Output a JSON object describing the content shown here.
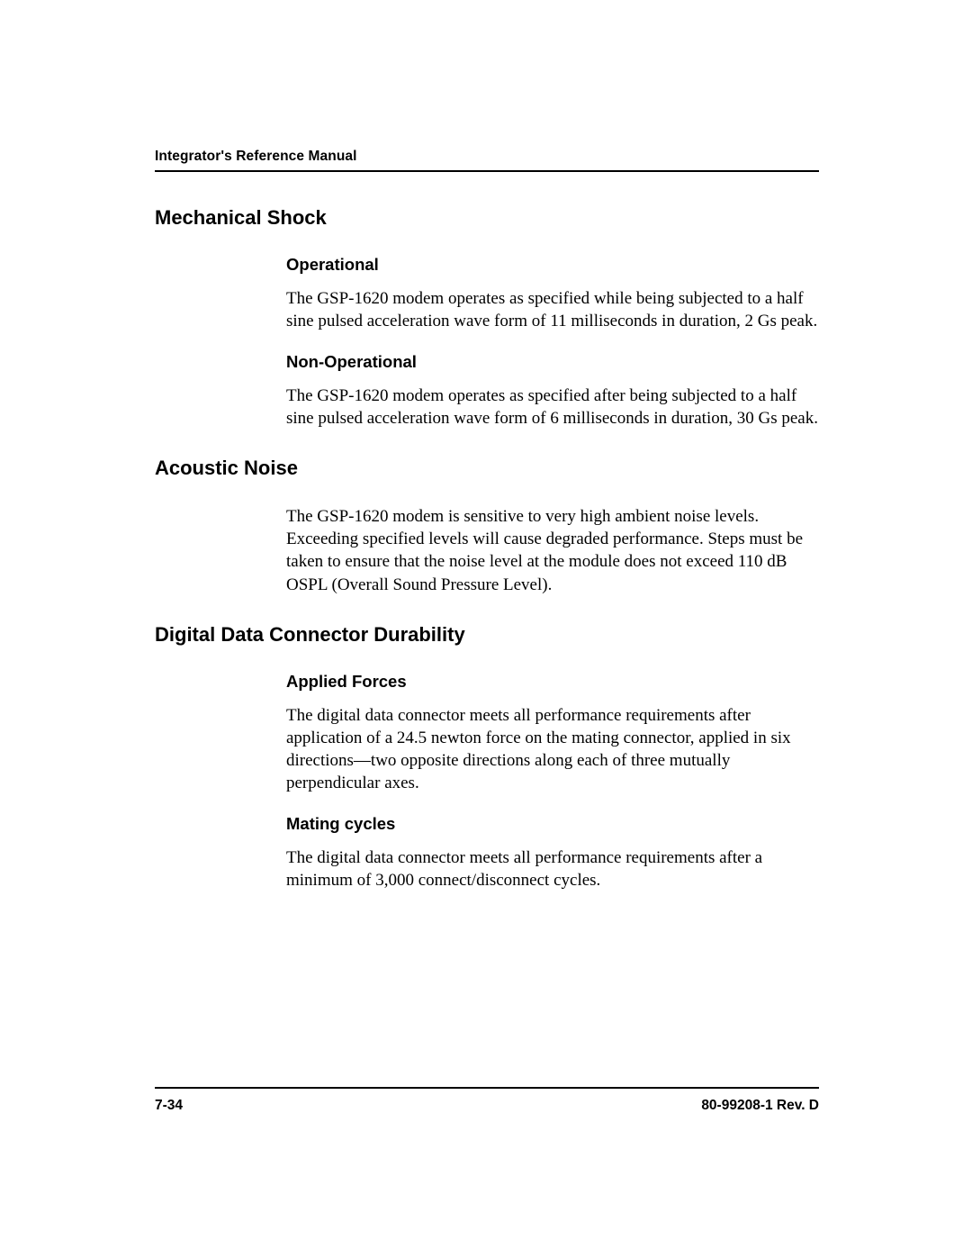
{
  "header": {
    "running_head": "Integrator's Reference Manual"
  },
  "sections": [
    {
      "title": "Mechanical Shock",
      "subsections": [
        {
          "title": "Operational",
          "body": "The GSP-1620 modem operates as specified while being subjected to a half sine pulsed acceleration wave form of 11 milliseconds in duration, 2 Gs peak."
        },
        {
          "title": "Non-Operational",
          "body": "The GSP-1620 modem operates as specified after being subjected to a half sine pulsed acceleration wave form of 6 milliseconds in duration, 30 Gs peak."
        }
      ]
    },
    {
      "title": "Acoustic Noise",
      "subsections": [
        {
          "title": "",
          "body": "The GSP-1620 modem is sensitive to very high ambient noise levels. Exceeding specified levels will cause degraded performance. Steps must be taken to ensure that the noise level at the module does not exceed 110 dB OSPL (Overall Sound Pressure Level)."
        }
      ]
    },
    {
      "title": "Digital Data Connector Durability",
      "subsections": [
        {
          "title": "Applied Forces",
          "body": "The digital data connector meets all performance requirements after application of a 24.5 newton force on the mating connector, applied in six directions—two opposite directions along each of three mutually perpendicular axes."
        },
        {
          "title": "Mating cycles",
          "body": "The digital data connector meets all performance requirements after a minimum of 3,000 connect/disconnect cycles."
        }
      ]
    }
  ],
  "footer": {
    "page_num": "7-34",
    "doc_rev": "80-99208-1 Rev. D"
  },
  "styles": {
    "page_bg": "#ffffff",
    "text_color": "#000000",
    "rule_color": "#000000",
    "heading_font": "Arial, Helvetica, sans-serif",
    "body_font": "Times New Roman, Times, serif",
    "running_head_size_pt": 12,
    "h1_size_pt": 16,
    "h2_size_pt": 14,
    "body_size_pt": 14
  }
}
